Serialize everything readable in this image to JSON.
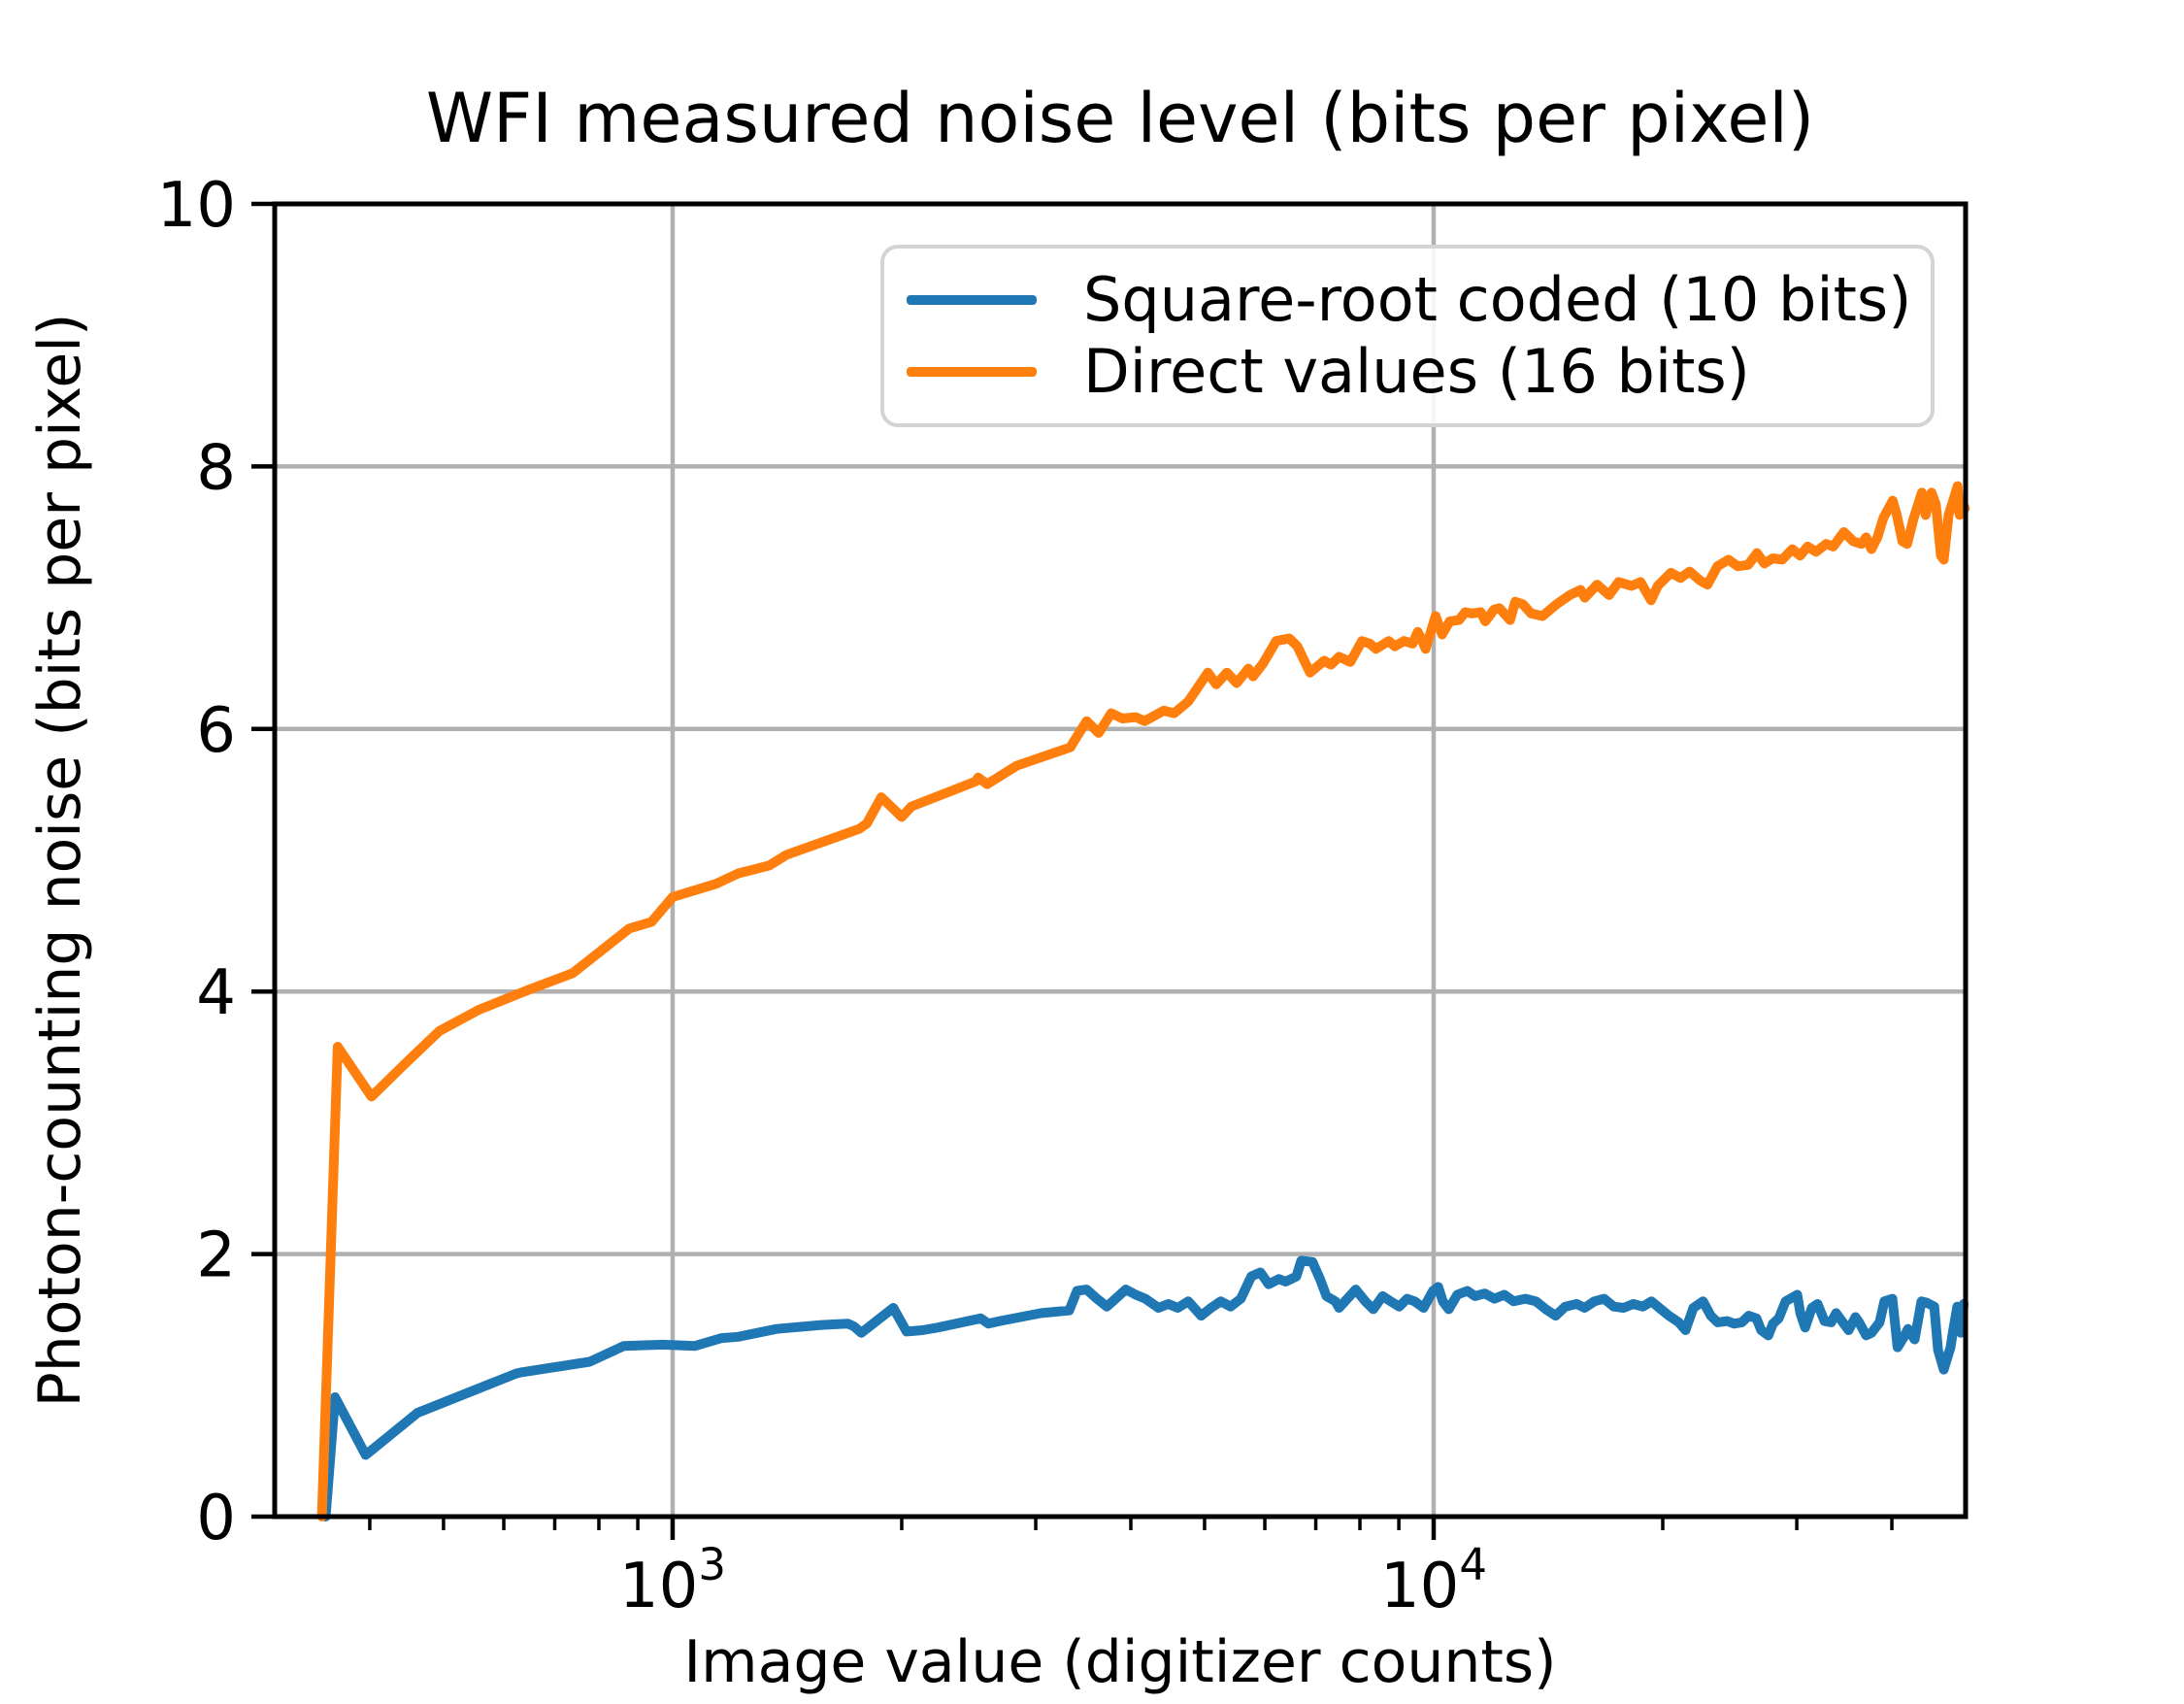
{
  "chart_data": {
    "type": "line",
    "title": "WFI measured noise level (bits per pixel)",
    "xlabel": "Image value (digitizer counts)",
    "ylabel": "Photon-counting noise (bits per pixel)",
    "xscale": "log",
    "xlim": [
      300,
      50000
    ],
    "ylim": [
      0,
      10
    ],
    "grid": "on",
    "grid_color": "#b0b0b0",
    "background_color": "#ffffff",
    "spine_color": "#000000",
    "legend_position": "upper center",
    "xticks": [
      {
        "value": 1000,
        "base": "10",
        "exponent": "3"
      },
      {
        "value": 10000,
        "base": "10",
        "exponent": "4"
      }
    ],
    "xminorticks": [
      400,
      500,
      600,
      700,
      800,
      900,
      2000,
      3000,
      4000,
      5000,
      6000,
      7000,
      8000,
      9000,
      20000,
      30000,
      40000
    ],
    "yticks": [
      0,
      2,
      4,
      6,
      8,
      10
    ],
    "series": [
      {
        "name": "Square-root coded (10 bits)",
        "color": "#1f77b4",
        "points": [
          [
            350,
            0
          ],
          [
            360,
            0.91
          ],
          [
            395,
            0.47
          ],
          [
            462,
            0.79
          ],
          [
            623,
            1.09
          ],
          [
            634,
            1.1
          ],
          [
            778,
            1.18
          ],
          [
            863,
            1.3
          ],
          [
            970,
            1.31
          ],
          [
            1070,
            1.3
          ],
          [
            1160,
            1.36
          ],
          [
            1220,
            1.37
          ],
          [
            1370,
            1.43
          ],
          [
            1570,
            1.46
          ],
          [
            1700,
            1.47
          ],
          [
            1730,
            1.45
          ],
          [
            1770,
            1.4
          ],
          [
            1950,
            1.59
          ],
          [
            2030,
            1.41
          ],
          [
            2130,
            1.42
          ],
          [
            2230,
            1.44
          ],
          [
            2540,
            1.51
          ],
          [
            2600,
            1.47
          ],
          [
            2690,
            1.49
          ],
          [
            3050,
            1.55
          ],
          [
            3320,
            1.57
          ],
          [
            3400,
            1.72
          ],
          [
            3500,
            1.73
          ],
          [
            3610,
            1.66
          ],
          [
            3720,
            1.6
          ],
          [
            3820,
            1.66
          ],
          [
            3940,
            1.73
          ],
          [
            4060,
            1.69
          ],
          [
            4180,
            1.66
          ],
          [
            4350,
            1.59
          ],
          [
            4480,
            1.62
          ],
          [
            4610,
            1.59
          ],
          [
            4760,
            1.64
          ],
          [
            4950,
            1.53
          ],
          [
            5100,
            1.59
          ],
          [
            5250,
            1.64
          ],
          [
            5410,
            1.6
          ],
          [
            5580,
            1.66
          ],
          [
            5760,
            1.83
          ],
          [
            5920,
            1.86
          ],
          [
            6070,
            1.77
          ],
          [
            6260,
            1.81
          ],
          [
            6390,
            1.79
          ],
          [
            6600,
            1.83
          ],
          [
            6700,
            1.95
          ],
          [
            6930,
            1.94
          ],
          [
            7090,
            1.81
          ],
          [
            7230,
            1.68
          ],
          [
            7430,
            1.64
          ],
          [
            7510,
            1.59
          ],
          [
            7900,
            1.73
          ],
          [
            8130,
            1.64
          ],
          [
            8330,
            1.58
          ],
          [
            8570,
            1.68
          ],
          [
            8780,
            1.64
          ],
          [
            9010,
            1.6
          ],
          [
            9230,
            1.66
          ],
          [
            9440,
            1.64
          ],
          [
            9700,
            1.59
          ],
          [
            9980,
            1.72
          ],
          [
            10140,
            1.75
          ],
          [
            10280,
            1.64
          ],
          [
            10470,
            1.58
          ],
          [
            10740,
            1.69
          ],
          [
            11070,
            1.72
          ],
          [
            11330,
            1.68
          ],
          [
            11670,
            1.7
          ],
          [
            12020,
            1.66
          ],
          [
            12380,
            1.69
          ],
          [
            12740,
            1.64
          ],
          [
            13200,
            1.66
          ],
          [
            13630,
            1.64
          ],
          [
            14040,
            1.58
          ],
          [
            14460,
            1.53
          ],
          [
            14890,
            1.6
          ],
          [
            15420,
            1.62
          ],
          [
            15790,
            1.59
          ],
          [
            16260,
            1.64
          ],
          [
            16750,
            1.66
          ],
          [
            17250,
            1.6
          ],
          [
            17760,
            1.59
          ],
          [
            18290,
            1.62
          ],
          [
            18830,
            1.6
          ],
          [
            19330,
            1.64
          ],
          [
            19790,
            1.59
          ],
          [
            20380,
            1.53
          ],
          [
            20990,
            1.48
          ],
          [
            21430,
            1.42
          ],
          [
            21940,
            1.59
          ],
          [
            22590,
            1.64
          ],
          [
            23130,
            1.53
          ],
          [
            23610,
            1.48
          ],
          [
            24320,
            1.49
          ],
          [
            24820,
            1.47
          ],
          [
            25410,
            1.48
          ],
          [
            25940,
            1.53
          ],
          [
            26550,
            1.51
          ],
          [
            26940,
            1.42
          ],
          [
            27530,
            1.38
          ],
          [
            27910,
            1.47
          ],
          [
            28410,
            1.51
          ],
          [
            29000,
            1.64
          ],
          [
            30050,
            1.69
          ],
          [
            30320,
            1.55
          ],
          [
            30770,
            1.44
          ],
          [
            31400,
            1.59
          ],
          [
            31950,
            1.62
          ],
          [
            32620,
            1.49
          ],
          [
            33290,
            1.48
          ],
          [
            33790,
            1.55
          ],
          [
            34380,
            1.49
          ],
          [
            35100,
            1.42
          ],
          [
            35830,
            1.52
          ],
          [
            36230,
            1.48
          ],
          [
            37000,
            1.38
          ],
          [
            37620,
            1.4
          ],
          [
            38550,
            1.48
          ],
          [
            39100,
            1.64
          ],
          [
            40070,
            1.66
          ],
          [
            40700,
            1.29
          ],
          [
            41500,
            1.37
          ],
          [
            41990,
            1.43
          ],
          [
            42860,
            1.35
          ],
          [
            43750,
            1.64
          ],
          [
            44420,
            1.63
          ],
          [
            45480,
            1.6
          ],
          [
            46000,
            1.27
          ],
          [
            46800,
            1.12
          ],
          [
            47770,
            1.29
          ],
          [
            48100,
            1.4
          ],
          [
            48760,
            1.6
          ],
          [
            49300,
            1.4
          ],
          [
            49700,
            1.62
          ]
        ]
      },
      {
        "name": "Direct values (16 bits)",
        "color": "#ff7f0e",
        "points": [
          [
            346,
            0
          ],
          [
            363,
            3.58
          ],
          [
            402,
            3.2
          ],
          [
            445,
            3.45
          ],
          [
            494,
            3.7
          ],
          [
            556,
            3.86
          ],
          [
            645,
            4.01
          ],
          [
            739,
            4.14
          ],
          [
            877,
            4.48
          ],
          [
            938,
            4.53
          ],
          [
            1000,
            4.72
          ],
          [
            1140,
            4.82
          ],
          [
            1220,
            4.9
          ],
          [
            1340,
            4.96
          ],
          [
            1410,
            5.04
          ],
          [
            1630,
            5.17
          ],
          [
            1760,
            5.24
          ],
          [
            1800,
            5.28
          ],
          [
            1880,
            5.48
          ],
          [
            2000,
            5.33
          ],
          [
            2060,
            5.41
          ],
          [
            2500,
            5.6
          ],
          [
            2520,
            5.63
          ],
          [
            2590,
            5.58
          ],
          [
            2830,
            5.72
          ],
          [
            3330,
            5.86
          ],
          [
            3380,
            5.92
          ],
          [
            3500,
            6.06
          ],
          [
            3630,
            5.97
          ],
          [
            3770,
            6.12
          ],
          [
            3900,
            6.08
          ],
          [
            4060,
            6.09
          ],
          [
            4170,
            6.06
          ],
          [
            4420,
            6.14
          ],
          [
            4560,
            6.12
          ],
          [
            4760,
            6.21
          ],
          [
            5050,
            6.43
          ],
          [
            5180,
            6.34
          ],
          [
            5350,
            6.43
          ],
          [
            5510,
            6.35
          ],
          [
            5710,
            6.46
          ],
          [
            5790,
            6.4
          ],
          [
            5970,
            6.5
          ],
          [
            6210,
            6.67
          ],
          [
            6460,
            6.69
          ],
          [
            6620,
            6.63
          ],
          [
            6880,
            6.43
          ],
          [
            7180,
            6.52
          ],
          [
            7330,
            6.49
          ],
          [
            7510,
            6.55
          ],
          [
            7770,
            6.51
          ],
          [
            8050,
            6.67
          ],
          [
            8240,
            6.65
          ],
          [
            8400,
            6.61
          ],
          [
            8730,
            6.67
          ],
          [
            8890,
            6.63
          ],
          [
            9140,
            6.67
          ],
          [
            9380,
            6.65
          ],
          [
            9530,
            6.74
          ],
          [
            9630,
            6.69
          ],
          [
            9760,
            6.61
          ],
          [
            9890,
            6.72
          ],
          [
            10060,
            6.86
          ],
          [
            10260,
            6.72
          ],
          [
            10500,
            6.82
          ],
          [
            10800,
            6.83
          ],
          [
            11000,
            6.89
          ],
          [
            11230,
            6.88
          ],
          [
            11530,
            6.89
          ],
          [
            11690,
            6.82
          ],
          [
            12010,
            6.91
          ],
          [
            12200,
            6.92
          ],
          [
            12600,
            6.83
          ],
          [
            12800,
            6.97
          ],
          [
            13100,
            6.95
          ],
          [
            13430,
            6.88
          ],
          [
            13900,
            6.86
          ],
          [
            14500,
            6.95
          ],
          [
            15100,
            7.02
          ],
          [
            15600,
            7.06
          ],
          [
            15800,
            7.0
          ],
          [
            16400,
            7.1
          ],
          [
            17000,
            7.02
          ],
          [
            17500,
            7.12
          ],
          [
            18200,
            7.09
          ],
          [
            18700,
            7.12
          ],
          [
            19300,
            6.98
          ],
          [
            19700,
            7.09
          ],
          [
            20500,
            7.19
          ],
          [
            21100,
            7.15
          ],
          [
            21700,
            7.2
          ],
          [
            22400,
            7.13
          ],
          [
            22900,
            7.1
          ],
          [
            23600,
            7.24
          ],
          [
            24400,
            7.29
          ],
          [
            25100,
            7.24
          ],
          [
            25900,
            7.25
          ],
          [
            26600,
            7.34
          ],
          [
            27200,
            7.26
          ],
          [
            27900,
            7.3
          ],
          [
            28700,
            7.29
          ],
          [
            29600,
            7.37
          ],
          [
            30300,
            7.32
          ],
          [
            31000,
            7.39
          ],
          [
            31800,
            7.35
          ],
          [
            32800,
            7.41
          ],
          [
            33500,
            7.39
          ],
          [
            34600,
            7.5
          ],
          [
            35600,
            7.43
          ],
          [
            36500,
            7.41
          ],
          [
            37000,
            7.46
          ],
          [
            37600,
            7.37
          ],
          [
            38300,
            7.46
          ],
          [
            39000,
            7.61
          ],
          [
            40100,
            7.74
          ],
          [
            40600,
            7.63
          ],
          [
            41300,
            7.43
          ],
          [
            41900,
            7.41
          ],
          [
            42700,
            7.6
          ],
          [
            43800,
            7.8
          ],
          [
            44300,
            7.63
          ],
          [
            45100,
            7.8
          ],
          [
            45700,
            7.71
          ],
          [
            46400,
            7.32
          ],
          [
            46800,
            7.29
          ],
          [
            47500,
            7.63
          ],
          [
            48100,
            7.73
          ],
          [
            48800,
            7.85
          ],
          [
            49100,
            7.63
          ],
          [
            49500,
            7.73
          ],
          [
            49900,
            7.68
          ]
        ]
      }
    ]
  }
}
